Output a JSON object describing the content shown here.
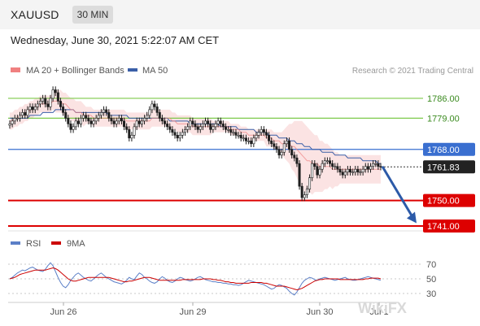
{
  "header": {
    "symbol": "XAUUSD",
    "timeframe": "30 MIN",
    "datetime": "Wednesday, June 30, 2021 5:22:07 AM CET"
  },
  "legend": {
    "ma20": {
      "label": "MA 20 + Bollinger Bands",
      "color": "#f08080"
    },
    "ma50": {
      "label": "MA 50",
      "color": "#3a5fa8"
    }
  },
  "credit": "Research © 2021 Trading Central",
  "rsi_legend": {
    "rsi": {
      "label": "RSI",
      "color": "#5b7fc7"
    },
    "ma9": {
      "label": "9MA",
      "color": "#cc0000"
    }
  },
  "watermark": "WikiFX",
  "chart_data": [
    {
      "type": "candlestick",
      "symbol": "XAUUSD",
      "timeframe": "30 MIN",
      "x_labels": [
        "Jun 26",
        "Jun 29",
        "Jun 30",
        "Jul 1"
      ],
      "ylim": [
        1739,
        1792
      ],
      "levels": [
        {
          "value": 1786.0,
          "label": "1786.00",
          "role": "resistance",
          "color": "#7dc94a",
          "badge": "#ffffff",
          "text": "#3a8a1f"
        },
        {
          "value": 1779.0,
          "label": "1779.00",
          "role": "resistance",
          "color": "#7dc94a",
          "badge": "#ffffff",
          "text": "#3a8a1f"
        },
        {
          "value": 1768.0,
          "label": "1768.00",
          "role": "pivot",
          "color": "#3a6fd0",
          "badge": "#3a6fd0",
          "text": "#ffffff"
        },
        {
          "value": 1761.83,
          "label": "1761.83",
          "role": "last",
          "color": "#333333",
          "badge": "#222222",
          "text": "#ffffff"
        },
        {
          "value": 1750.0,
          "label": "1750.00",
          "role": "support",
          "color": "#dd0000",
          "badge": "#dd0000",
          "text": "#ffffff"
        },
        {
          "value": 1741.0,
          "label": "1741.00",
          "role": "support",
          "color": "#dd0000",
          "badge": "#dd0000",
          "text": "#ffffff"
        }
      ],
      "arrow": {
        "from": 1762,
        "to": 1742,
        "color": "#2c5aa8"
      },
      "close": [
        1777,
        1778,
        1779,
        1779,
        1780,
        1781,
        1780,
        1782,
        1783,
        1782,
        1783,
        1784,
        1785,
        1786,
        1784,
        1783,
        1786,
        1789,
        1788,
        1785,
        1783,
        1781,
        1779,
        1777,
        1775,
        1776,
        1778,
        1777,
        1779,
        1780,
        1779,
        1778,
        1777,
        1778,
        1779,
        1780,
        1781,
        1782,
        1781,
        1779,
        1778,
        1777,
        1778,
        1779,
        1778,
        1776,
        1775,
        1772,
        1773,
        1776,
        1778,
        1777,
        1778,
        1779,
        1780,
        1782,
        1784,
        1783,
        1781,
        1779,
        1778,
        1777,
        1776,
        1775,
        1774,
        1773,
        1772,
        1773,
        1774,
        1775,
        1776,
        1778,
        1777,
        1776,
        1775,
        1776,
        1777,
        1778,
        1777,
        1775,
        1776,
        1777,
        1778,
        1777,
        1776,
        1775,
        1775,
        1774,
        1774,
        1773,
        1773,
        1772,
        1772,
        1771,
        1771,
        1770,
        1772,
        1773,
        1774,
        1775,
        1774,
        1773,
        1771,
        1770,
        1769,
        1768,
        1766,
        1767,
        1770,
        1771,
        1768,
        1766,
        1765,
        1763,
        1755,
        1751,
        1752,
        1754,
        1758,
        1763,
        1762,
        1759,
        1761,
        1763,
        1764,
        1764,
        1763,
        1762,
        1762,
        1761,
        1760,
        1759,
        1760,
        1761,
        1760,
        1760,
        1761,
        1760,
        1760,
        1761,
        1762,
        1761,
        1762,
        1763,
        1763,
        1762,
        1761.83
      ],
      "ma20": [
        1778,
        1778,
        1779,
        1779,
        1780,
        1780,
        1781,
        1781,
        1782,
        1782,
        1783,
        1783,
        1784,
        1784,
        1784,
        1784,
        1784,
        1785,
        1785,
        1785,
        1785,
        1784,
        1784,
        1783,
        1782,
        1782,
        1781,
        1781,
        1781,
        1780,
        1780,
        1780,
        1780,
        1779,
        1779,
        1779,
        1779,
        1779,
        1779,
        1779,
        1779,
        1779,
        1779,
        1779,
        1779,
        1779,
        1778,
        1778,
        1778,
        1778,
        1778,
        1778,
        1778,
        1778,
        1778,
        1778,
        1779,
        1779,
        1779,
        1779,
        1779,
        1779,
        1779,
        1779,
        1778,
        1778,
        1777,
        1777,
        1777,
        1777,
        1777,
        1777,
        1776,
        1776,
        1776,
        1776,
        1776,
        1776,
        1776,
        1776,
        1776,
        1776,
        1776,
        1776,
        1776,
        1776,
        1776,
        1775,
        1775,
        1775,
        1775,
        1774,
        1774,
        1774,
        1773,
        1773,
        1773,
        1773,
        1773,
        1773,
        1773,
        1772,
        1772,
        1772,
        1771,
        1771,
        1771,
        1770,
        1770,
        1770,
        1770,
        1769,
        1769,
        1768,
        1767,
        1766,
        1765,
        1764,
        1764,
        1763,
        1763,
        1763,
        1762,
        1762,
        1762,
        1762,
        1762,
        1761,
        1761,
        1761,
        1761,
        1761,
        1761,
        1761,
        1761,
        1761,
        1761,
        1761,
        1761,
        1761,
        1761,
        1761,
        1761,
        1761,
        1761,
        1761,
        1761
      ],
      "ma50": [
        1779,
        1779,
        1779,
        1779,
        1779,
        1779,
        1779,
        1779,
        1780,
        1780,
        1780,
        1780,
        1780,
        1781,
        1781,
        1781,
        1781,
        1781,
        1782,
        1782,
        1782,
        1782,
        1782,
        1782,
        1782,
        1782,
        1781,
        1781,
        1781,
        1781,
        1781,
        1781,
        1781,
        1781,
        1781,
        1781,
        1781,
        1781,
        1781,
        1780,
        1780,
        1780,
        1780,
        1780,
        1780,
        1780,
        1780,
        1779,
        1779,
        1779,
        1779,
        1779,
        1779,
        1779,
        1779,
        1779,
        1779,
        1779,
        1779,
        1779,
        1779,
        1779,
        1779,
        1778,
        1778,
        1778,
        1778,
        1778,
        1778,
        1778,
        1778,
        1777,
        1777,
        1777,
        1777,
        1777,
        1777,
        1777,
        1777,
        1777,
        1777,
        1777,
        1777,
        1776,
        1776,
        1776,
        1776,
        1776,
        1776,
        1776,
        1775,
        1775,
        1775,
        1775,
        1775,
        1775,
        1775,
        1774,
        1774,
        1774,
        1774,
        1774,
        1773,
        1773,
        1773,
        1773,
        1772,
        1772,
        1772,
        1772,
        1771,
        1771,
        1771,
        1770,
        1770,
        1770,
        1769,
        1769,
        1769,
        1768,
        1768,
        1768,
        1768,
        1767,
        1767,
        1767,
        1767,
        1767,
        1766,
        1766,
        1766,
        1766,
        1766,
        1765,
        1765,
        1765,
        1765,
        1765,
        1765,
        1764,
        1764,
        1764,
        1764,
        1764,
        1764,
        1763,
        1763
      ],
      "band_width": [
        3,
        3,
        3,
        3,
        3,
        3,
        3,
        3,
        3,
        3,
        3,
        3,
        3,
        3,
        3,
        3,
        3,
        3,
        4,
        4,
        4,
        4,
        4,
        4,
        4,
        4,
        4,
        4,
        4,
        4,
        3,
        3,
        3,
        3,
        3,
        3,
        3,
        3,
        3,
        3,
        3,
        3,
        3,
        3,
        3,
        3,
        3,
        3,
        3,
        3,
        3,
        3,
        3,
        3,
        3,
        3,
        3,
        3,
        3,
        3,
        3,
        3,
        3,
        3,
        3,
        3,
        3,
        3,
        3,
        3,
        3,
        3,
        3,
        3,
        3,
        3,
        3,
        3,
        3,
        3,
        2,
        2,
        2,
        2,
        2,
        2,
        2,
        2,
        2,
        2,
        2,
        2,
        2,
        2,
        2,
        2,
        2,
        2,
        2,
        2,
        2,
        3,
        3,
        3,
        3,
        3,
        3,
        4,
        5,
        6,
        7,
        8,
        9,
        10,
        11,
        12,
        12,
        12,
        11,
        11,
        10,
        10,
        9,
        9,
        8,
        8,
        7,
        7,
        6,
        6,
        5,
        5,
        5,
        5,
        5,
        5,
        5,
        5,
        5,
        5,
        5,
        5,
        5,
        5,
        5,
        5,
        5
      ]
    },
    {
      "type": "line",
      "name": "RSI",
      "x_labels": [
        "Jun 26",
        "Jun 29",
        "Jun 30",
        "Jul 1"
      ],
      "ylim": [
        20,
        80
      ],
      "y_ticks": [
        70,
        50,
        30
      ],
      "series": [
        {
          "name": "RSI",
          "values": [
            50,
            52,
            55,
            58,
            60,
            62,
            61,
            63,
            65,
            66,
            64,
            62,
            61,
            60,
            63,
            68,
            72,
            68,
            60,
            52,
            45,
            40,
            38,
            42,
            48,
            52,
            56,
            58,
            55,
            52,
            50,
            48,
            47,
            50,
            53,
            56,
            58,
            55,
            52,
            50,
            48,
            46,
            45,
            44,
            43,
            45,
            48,
            52,
            50,
            49,
            54,
            58,
            56,
            52,
            50,
            47,
            45,
            44,
            46,
            50,
            53,
            51,
            48,
            46,
            45,
            47,
            50,
            52,
            51,
            49,
            48,
            47,
            48,
            50,
            52,
            53,
            51,
            49,
            48,
            47,
            46,
            46,
            45,
            45,
            44,
            44,
            43,
            43,
            42,
            42,
            41,
            42,
            44,
            46,
            48,
            47,
            46,
            45,
            44,
            43,
            42,
            40,
            38,
            36,
            37,
            40,
            42,
            41,
            39,
            37,
            33,
            30,
            28,
            32,
            38,
            44,
            48,
            50,
            52,
            51,
            49,
            48,
            50,
            51,
            52,
            51,
            50,
            49,
            48,
            49,
            50,
            51,
            52,
            50,
            49,
            48,
            48,
            49,
            50,
            51,
            52,
            53,
            52,
            51,
            50,
            49,
            48
          ]
        },
        {
          "name": "9MA",
          "values": [
            50,
            51,
            52,
            54,
            56,
            57,
            58,
            59,
            60,
            61,
            62,
            62,
            62,
            62,
            62,
            63,
            64,
            65,
            64,
            62,
            59,
            56,
            53,
            50,
            48,
            47,
            47,
            48,
            49,
            50,
            51,
            52,
            52,
            52,
            52,
            52,
            52,
            52,
            52,
            52,
            51,
            50,
            49,
            48,
            47,
            46,
            46,
            47,
            47,
            48,
            49,
            50,
            51,
            52,
            52,
            52,
            51,
            50,
            49,
            48,
            48,
            48,
            48,
            48,
            48,
            48,
            48,
            48,
            49,
            49,
            49,
            49,
            49,
            49,
            49,
            49,
            50,
            50,
            50,
            50,
            49,
            49,
            48,
            48,
            47,
            46,
            46,
            45,
            45,
            44,
            44,
            44,
            44,
            44,
            44,
            45,
            45,
            45,
            45,
            45,
            44,
            44,
            43,
            42,
            41,
            40,
            40,
            40,
            40,
            39,
            38,
            37,
            36,
            35,
            36,
            37,
            39,
            41,
            43,
            45,
            47,
            48,
            49,
            49,
            50,
            50,
            50,
            50,
            50,
            50,
            49,
            49,
            49,
            49,
            49,
            49,
            49,
            49,
            49,
            49,
            50,
            50,
            51,
            51,
            51,
            51,
            50
          ]
        }
      ]
    }
  ]
}
